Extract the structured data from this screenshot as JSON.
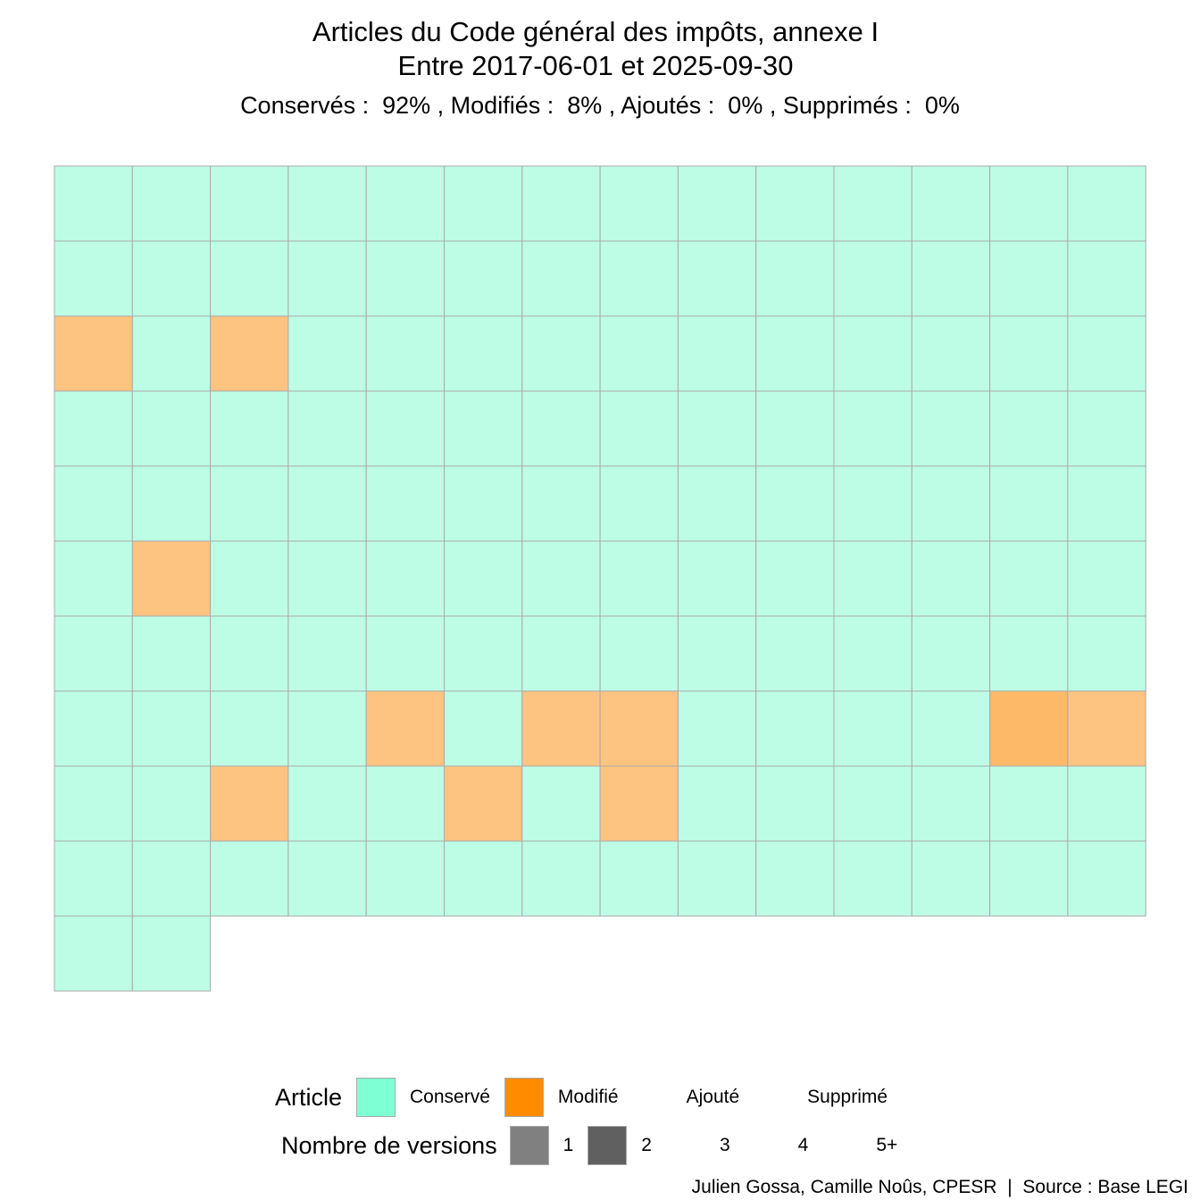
{
  "header": {
    "title_line1": "Articles du Code général des impôts, annexe I",
    "title_line2": "Entre 2017-06-01 et 2025-09-30",
    "subtitle": "Conservés :  92% , Modifiés :  8% , Ajoutés :  0% , Supprimés :  0%"
  },
  "colors": {
    "conserve_fill": "#bdfde6",
    "modifie_fill": "#fdc380",
    "modifie_dark_fill": "#fdb868",
    "tile_border": "#aaaaaa",
    "legend_conserve": "#7fffd4",
    "legend_modifie": "#ff8c00",
    "legend_v1": "#808080",
    "legend_v2": "#606060"
  },
  "chart_data": {
    "type": "heatmap",
    "title": "Articles du Code général des impôts, annexe I",
    "subtitle": "Entre 2017-06-01 et 2025-09-30",
    "columns": 14,
    "total_articles": 142,
    "status_counts": {
      "Conservé": 131,
      "Modifié": 11,
      "Ajouté": 0,
      "Supprimé": 0
    },
    "status_percent": {
      "Conservé": 92,
      "Modifié": 8,
      "Ajouté": 0,
      "Supprimé": 0
    },
    "tiles": [
      [
        "C",
        "C",
        "C",
        "C",
        "C",
        "C",
        "C",
        "C",
        "C",
        "C",
        "C",
        "C",
        "C",
        "C"
      ],
      [
        "C",
        "C",
        "C",
        "C",
        "C",
        "C",
        "C",
        "C",
        "C",
        "C",
        "C",
        "C",
        "C",
        "C"
      ],
      [
        "M1",
        "C",
        "M1",
        "C",
        "C",
        "C",
        "C",
        "C",
        "C",
        "C",
        "C",
        "C",
        "C",
        "C"
      ],
      [
        "C",
        "C",
        "C",
        "C",
        "C",
        "C",
        "C",
        "C",
        "C",
        "C",
        "C",
        "C",
        "C",
        "C"
      ],
      [
        "C",
        "C",
        "C",
        "C",
        "C",
        "C",
        "C",
        "C",
        "C",
        "C",
        "C",
        "C",
        "C",
        "C"
      ],
      [
        "C",
        "M1",
        "C",
        "C",
        "C",
        "C",
        "C",
        "C",
        "C",
        "C",
        "C",
        "C",
        "C",
        "C"
      ],
      [
        "C",
        "C",
        "C",
        "C",
        "C",
        "C",
        "C",
        "C",
        "C",
        "C",
        "C",
        "C",
        "C",
        "C"
      ],
      [
        "C",
        "C",
        "C",
        "C",
        "M1",
        "C",
        "M1",
        "M1",
        "C",
        "C",
        "C",
        "C",
        "M2",
        "M1"
      ],
      [
        "C",
        "C",
        "M1",
        "C",
        "C",
        "M1",
        "C",
        "M1",
        "C",
        "C",
        "C",
        "C",
        "C",
        "C"
      ],
      [
        "C",
        "C",
        "C",
        "C",
        "C",
        "C",
        "C",
        "C",
        "C",
        "C",
        "C",
        "C",
        "C",
        "C"
      ],
      [
        "C",
        "C"
      ]
    ],
    "tile_codes": {
      "C": "Conservé",
      "M1": "Modifié, 1 version",
      "M2": "Modifié, 2 versions"
    }
  },
  "legend": {
    "article_title": "Article",
    "article_items": [
      "Conservé",
      "Modifié",
      "Ajouté",
      "Supprimé"
    ],
    "versions_title": "Nombre de versions",
    "versions_items": [
      "1",
      "2",
      "3",
      "4",
      "5+"
    ]
  },
  "caption": "Julien Gossa, Camille Noûs, CPESR  |  Source : Base LEGI"
}
